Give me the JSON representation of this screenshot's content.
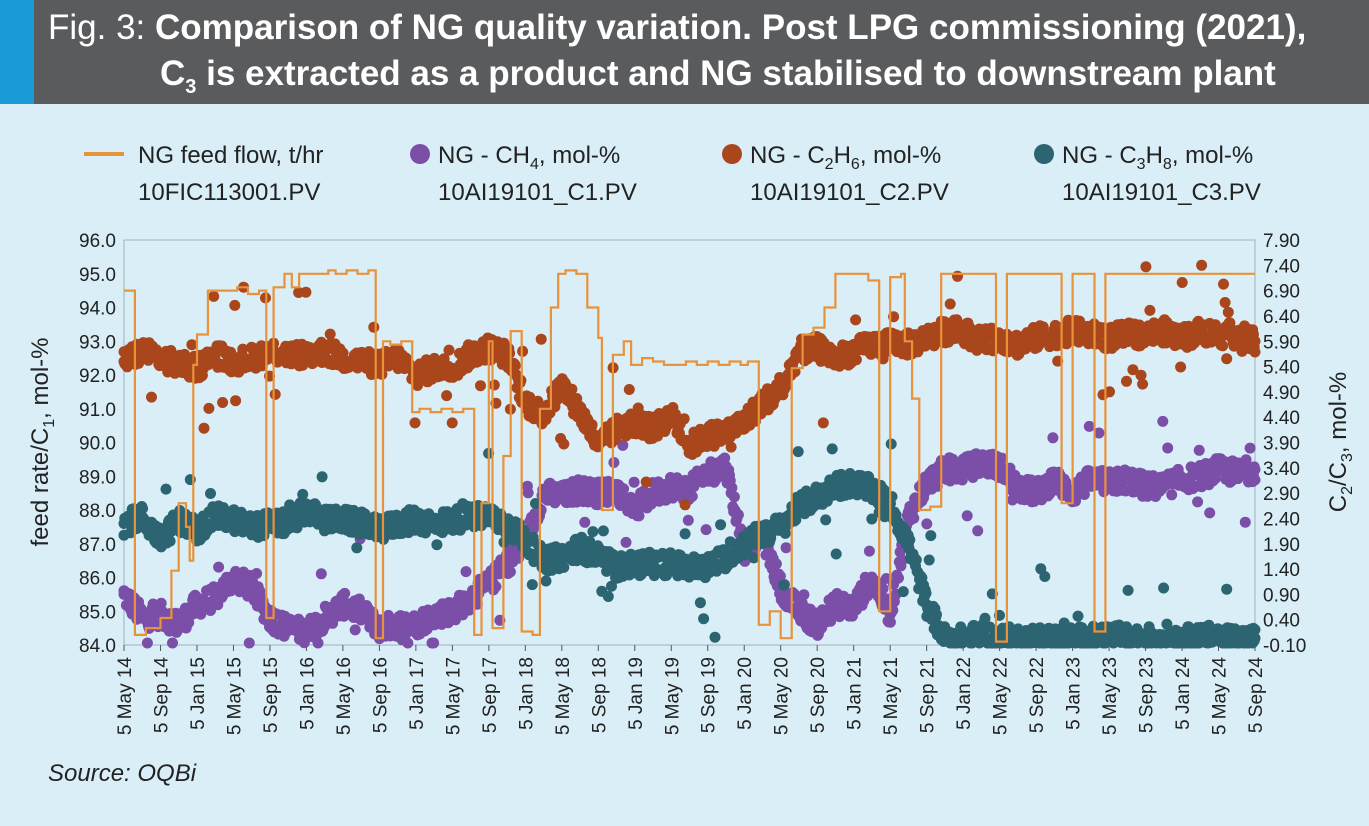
{
  "header": {
    "fig_label": "Fig. 3:",
    "title_line1": "Comparison of NG quality variation. Post LPG commissioning (2021),",
    "title_line2_pre": "C",
    "title_line2_sub": "3",
    "title_line2_post": " is extracted as a product and NG stabilised to downstream plant"
  },
  "source": "Source: OQBi",
  "colors": {
    "header_bg": "#5a5b5d",
    "accent": "#1a9ad6",
    "background": "#d9eef7",
    "feed": "#e8923a",
    "ch4": "#7b4fa8",
    "c2h6": "#a9461b",
    "c3h8": "#2d6472"
  },
  "chart_data": {
    "type": "line+scatter",
    "y_left": {
      "label_parts": [
        "feed rate/C",
        "1",
        ", mol-%"
      ],
      "min": 84.0,
      "max": 96.0,
      "ticks": [
        "96.0",
        "95.0",
        "94.0",
        "93.0",
        "92.0",
        "91.0",
        "90.0",
        "89.0",
        "88.0",
        "87.0",
        "86.0",
        "85.0",
        "84.0"
      ]
    },
    "y_right": {
      "label_parts": [
        "C",
        "2",
        "/C",
        "3",
        ", mol-%"
      ],
      "min": -0.1,
      "max": 7.9,
      "ticks": [
        "7.90",
        "7.40",
        "6.90",
        "6.40",
        "5.90",
        "5.40",
        "4.90",
        "4.40",
        "3.90",
        "3.40",
        "2.90",
        "2.40",
        "1.90",
        "1.40",
        "0.90",
        "0.40",
        "-0.10"
      ]
    },
    "x_ticks": [
      "5 May 14",
      "5 Sep 14",
      "5 Jan 15",
      "5 May 15",
      "5 Sep 15",
      "5 Jan 16",
      "5 May 16",
      "5 Sep 16",
      "5 Jan 17",
      "5 May 17",
      "5 Sep 17",
      "5 Jan 18",
      "5 May 18",
      "5 Sep 18",
      "5 Jan 19",
      "5 May 19",
      "5 Sep 19",
      "5 Jan 20",
      "5 May 20",
      "5 Sep 20",
      "5 Jan 21",
      "5 May 21",
      "5 Sep 21",
      "5 Jan 22",
      "5 May 22",
      "5 Sep 22",
      "5 Jan 23",
      "5 May 23",
      "5 Sep 23",
      "5 Jan 24",
      "5 May 24",
      "5 Sep 24"
    ],
    "legend": [
      {
        "key": "feed",
        "kind": "line",
        "parts": [
          "NG feed flow, t/hr"
        ],
        "tag": "10FIC113001.PV"
      },
      {
        "key": "ch4",
        "kind": "dot",
        "parts": [
          "NG - CH",
          "4",
          ", mol-%"
        ],
        "tag": "10AI19101_C1.PV"
      },
      {
        "key": "c2h6",
        "kind": "dot",
        "parts": [
          "NG - C",
          "2",
          "H",
          "6",
          ", mol-%"
        ],
        "tag": "10AI19101_C2.PV"
      },
      {
        "key": "c3h8",
        "kind": "dot",
        "parts": [
          "NG - C",
          "3",
          "H",
          "8",
          ", mol-%"
        ],
        "tag": "10AI19101_C3.PV"
      }
    ],
    "series": [
      {
        "key": "feed",
        "axis": "left",
        "t": [
          0,
          0.3,
          0.6,
          1,
          1.3,
          1.5,
          1.7,
          1.8,
          1.9,
          2,
          2.3,
          2.6,
          2.9,
          3.1,
          3.4,
          3.7,
          3.9,
          4.1,
          4.4,
          4.6,
          4.8,
          5.1,
          5.3,
          5.6,
          5.8,
          6.1,
          6.4,
          6.7,
          6.9,
          7.1,
          7.3,
          7.6,
          7.9,
          8.1,
          8.4,
          8.7,
          9,
          9.3,
          9.6,
          9.8,
          10,
          10.1,
          10.4,
          10.6,
          10.9,
          11.2,
          11.4,
          11.7,
          11.9,
          12.1,
          12.4,
          12.7,
          13,
          13.1,
          13.4,
          13.7,
          13.9,
          14.2,
          14.5,
          14.8,
          15.1,
          15.4,
          15.7,
          16,
          16.3,
          16.6,
          16.9,
          17.1,
          17.4,
          17.7,
          18,
          18.3,
          18.6,
          18.9,
          19.2,
          19.5,
          19.8,
          20.1,
          20.4,
          20.7,
          21,
          21.3,
          21.4,
          21.6,
          21.8,
          22.1,
          22.4,
          22.7,
          23,
          23.3,
          23.6,
          23.9,
          24.2,
          24.5,
          24.8,
          25.1,
          25.4,
          25.7,
          26,
          26.3,
          26.6,
          26.9,
          27.2,
          27.5,
          27.8,
          28.1,
          28.4,
          28.7,
          29,
          29.3,
          29.6,
          29.9,
          30.2,
          30.5,
          30.8,
          31
        ],
        "v": [
          94.5,
          84.3,
          84.5,
          84.8,
          86.2,
          88.2,
          87.5,
          86.5,
          92.3,
          93.2,
          94.5,
          94.5,
          94.5,
          94.6,
          94.4,
          94.5,
          84.8,
          94.6,
          95.0,
          94.6,
          95.0,
          95.0,
          95.0,
          95.1,
          95.0,
          95.1,
          95.0,
          95.1,
          84.2,
          93.0,
          92.9,
          93.0,
          90.9,
          91.0,
          90.9,
          91.0,
          90.9,
          91.0,
          84.3,
          88.2,
          93.0,
          84.5,
          89.6,
          93.3,
          84.4,
          84.3,
          91.0,
          94.0,
          95.0,
          95.1,
          95.0,
          94.0,
          93.1,
          88.0,
          92.6,
          93.0,
          92.3,
          92.5,
          92.4,
          92.3,
          92.3,
          92.4,
          92.3,
          92.4,
          92.3,
          92.4,
          92.3,
          92.4,
          84.6,
          85.0,
          84.2,
          92.2,
          93.2,
          93.4,
          94.0,
          95.0,
          95.0,
          95.0,
          94.8,
          85.0,
          94.9,
          95.0,
          93.0,
          91.3,
          88.0,
          88.1,
          95.0,
          95.0,
          95.0,
          95.0,
          95.0,
          84.1,
          95.0,
          95.0,
          95.0,
          95.0,
          95.0,
          88.2,
          95.0,
          95.0,
          84.4,
          95.0,
          95.0,
          95.0,
          95.0,
          95.0,
          95.0,
          95.0,
          95.0,
          95.0,
          95.0,
          95.0,
          95.0,
          95.0,
          95.0,
          95.0
        ]
      },
      {
        "key": "ch4",
        "axis": "left",
        "t": [
          0,
          0.5,
          1,
          1.5,
          2,
          2.5,
          3,
          3.5,
          4,
          4.5,
          5,
          5.5,
          6,
          6.5,
          7,
          7.5,
          8,
          8.5,
          9,
          9.5,
          10,
          10.5,
          11,
          11.5,
          12,
          12.5,
          13,
          13.5,
          14,
          14.5,
          15,
          15.5,
          16,
          16.5,
          17,
          17.5,
          18,
          18.5,
          19,
          19.5,
          20,
          20.5,
          21,
          21.5,
          22,
          22.5,
          23,
          23.5,
          24,
          24.5,
          25,
          25.5,
          26,
          26.5,
          27,
          27.5,
          28,
          28.5,
          29,
          29.5,
          30,
          30.5,
          31
        ],
        "v": [
          85.5,
          84.8,
          84.9,
          84.6,
          85.2,
          85.4,
          86.0,
          85.7,
          84.8,
          84.5,
          84.4,
          84.8,
          85.2,
          85.0,
          84.5,
          84.6,
          84.6,
          84.9,
          85.0,
          85.4,
          85.8,
          86.4,
          87.0,
          88.5,
          88.4,
          88.6,
          88.5,
          88.6,
          88.0,
          88.5,
          88.7,
          88.6,
          89.1,
          89.3,
          86.8,
          87.3,
          85.7,
          85.0,
          84.6,
          85.2,
          85.1,
          86.0,
          84.9,
          87.8,
          88.8,
          89.2,
          89.2,
          89.4,
          89.3,
          88.7,
          88.5,
          88.9,
          88.5,
          88.9,
          88.8,
          88.9,
          88.7,
          88.7,
          88.9,
          89.0,
          89.2,
          89.1,
          89.2
        ]
      },
      {
        "key": "c2h6",
        "axis": "left",
        "t": [
          0,
          0.5,
          1,
          1.5,
          2,
          2.5,
          3,
          3.5,
          4,
          4.5,
          5,
          5.5,
          6,
          6.5,
          7,
          7.5,
          8,
          8.5,
          9,
          9.5,
          10,
          10.5,
          11,
          11.5,
          12,
          12.5,
          13,
          13.5,
          14,
          14.5,
          15,
          15.5,
          16,
          16.5,
          17,
          17.5,
          18,
          18.5,
          19,
          19.5,
          20,
          20.5,
          21,
          21.5,
          22,
          22.5,
          23,
          23.5,
          24,
          24.5,
          25,
          25.5,
          26,
          26.5,
          27,
          27.5,
          28,
          28.5,
          29,
          29.5,
          30,
          30.5,
          31
        ],
        "v": [
          92.4,
          92.7,
          92.5,
          92.3,
          92.2,
          92.6,
          92.4,
          92.5,
          92.7,
          92.6,
          92.6,
          92.7,
          92.5,
          92.4,
          92.3,
          92.5,
          92.0,
          92.2,
          92.2,
          92.6,
          92.8,
          92.6,
          91.2,
          90.8,
          91.7,
          90.9,
          89.9,
          90.4,
          90.6,
          90.4,
          90.8,
          89.9,
          90.2,
          90.3,
          90.6,
          91.2,
          91.5,
          92.7,
          92.8,
          92.5,
          92.7,
          92.9,
          93.0,
          92.9,
          93.1,
          93.3,
          93.3,
          93.0,
          93.1,
          92.9,
          93.1,
          93.2,
          93.3,
          93.2,
          93.1,
          93.2,
          93.2,
          93.3,
          93.1,
          93.3,
          93.2,
          93.2,
          93.0
        ]
      },
      {
        "key": "c3h8",
        "axis": "left",
        "t": [
          0,
          0.5,
          1,
          1.5,
          2,
          2.5,
          3,
          3.5,
          4,
          4.5,
          5,
          5.5,
          6,
          6.5,
          7,
          7.5,
          8,
          8.5,
          9,
          9.5,
          10,
          10.5,
          11,
          11.5,
          12,
          12.5,
          13,
          13.5,
          14,
          14.5,
          15,
          15.5,
          16,
          16.5,
          17,
          17.5,
          18,
          18.5,
          19,
          19.5,
          20,
          20.5,
          21,
          21.5,
          22,
          22.5,
          23,
          23.5,
          24,
          24.5,
          25,
          25.5,
          26,
          26.5,
          27,
          27.5,
          28,
          28.5,
          29,
          29.5,
          30,
          30.5,
          31
        ],
        "v": [
          87.6,
          87.8,
          87.1,
          87.7,
          87.4,
          87.8,
          87.7,
          87.5,
          87.6,
          87.6,
          88.0,
          87.7,
          87.7,
          87.6,
          87.4,
          87.6,
          87.7,
          87.6,
          87.7,
          87.8,
          87.8,
          87.6,
          87.1,
          86.5,
          86.6,
          86.9,
          86.6,
          86.3,
          86.4,
          86.4,
          86.4,
          86.3,
          86.3,
          86.6,
          87.0,
          87.3,
          87.5,
          88.1,
          88.4,
          88.7,
          88.8,
          88.6,
          88.2,
          87.0,
          85.2,
          84.2,
          84.2,
          84.3,
          84.2,
          84.2,
          84.2,
          84.2,
          84.2,
          84.2,
          84.3,
          84.2,
          84.2,
          84.3,
          84.2,
          84.2,
          84.3,
          84.2,
          84.2
        ]
      }
    ]
  }
}
